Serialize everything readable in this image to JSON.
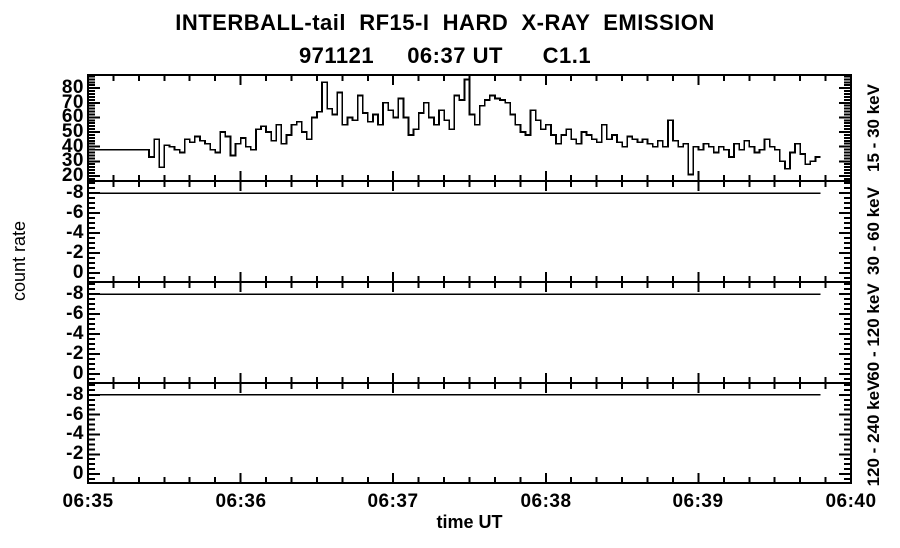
{
  "header": {
    "title": "INTERBALL-tail  RF15-I  HARD  X-RAY  EMISSION",
    "subtitle": "971121     06:37 UT      C1.1"
  },
  "axes": {
    "ylabel": "count rate",
    "xlabel": "time UT"
  },
  "chart_data": {
    "type": "line",
    "style": "step-histogram",
    "title": "INTERBALL-tail RF15-I HARD X-RAY EMISSION",
    "subtitle": "971121 06:37 UT C1.1",
    "xlabel": "time UT",
    "ylabel": "count rate",
    "x_ticks": [
      "06:35",
      "06:36",
      "06:37",
      "06:38",
      "06:39",
      "06:40"
    ],
    "x_range_seconds": [
      0,
      300
    ],
    "x_minor_interval_seconds": 10,
    "x_major_interval_seconds": 60,
    "start_time": "06:35:00",
    "bin_seconds": 2,
    "n_bins": 144,
    "line_color": "#000000",
    "background_color": "#ffffff",
    "legend": "none",
    "grid": "off",
    "panels": [
      {
        "label": "15 - 30 keV",
        "ylim_bottom_top": [
          16.5,
          89
        ],
        "y_major_ticks": [
          80,
          70,
          60,
          50,
          40,
          30,
          20
        ],
        "y_minor_step": 2,
        "values": [
          38,
          38,
          38,
          38,
          38,
          38,
          38,
          38,
          38,
          38,
          38,
          38,
          33,
          45,
          26,
          41,
          40,
          38,
          36,
          45,
          43,
          47,
          44,
          42,
          38,
          36,
          50,
          47,
          34,
          42,
          46,
          40,
          38,
          52,
          54,
          50,
          44,
          55,
          42,
          48,
          55,
          57,
          50,
          45,
          60,
          64,
          84,
          66,
          62,
          77,
          55,
          60,
          58,
          75,
          63,
          57,
          62,
          55,
          70,
          65,
          60,
          73,
          60,
          48,
          52,
          63,
          70,
          60,
          55,
          65,
          58,
          52,
          75,
          72,
          86,
          62,
          55,
          68,
          72,
          75,
          73,
          72,
          70,
          62,
          55,
          50,
          48,
          65,
          58,
          52,
          55,
          48,
          42,
          48,
          52,
          45,
          42,
          50,
          48,
          45,
          43,
          55,
          45,
          48,
          43,
          40,
          47,
          45,
          43,
          45,
          42,
          40,
          44,
          40,
          58,
          44,
          40,
          42,
          21,
          40,
          38,
          42,
          40,
          36,
          40,
          38,
          33,
          42,
          38,
          44,
          40,
          36,
          38,
          45,
          40,
          38,
          30,
          25,
          36,
          42,
          35,
          28,
          30,
          33
        ]
      },
      {
        "label": "30 - 60 keV",
        "ylim_bottom_top": [
          0.9,
          -9.2
        ],
        "y_major_ticks": [
          -8,
          -6,
          -4,
          -2,
          0
        ],
        "y_minor_step": 0.5,
        "flat_value": -8
      },
      {
        "label": "60 - 120 keV",
        "ylim_bottom_top": [
          0.9,
          -9.2
        ],
        "y_major_ticks": [
          -8,
          -6,
          -4,
          -2,
          0
        ],
        "y_minor_step": 0.5,
        "flat_value": -8
      },
      {
        "label": "120 - 240 keV",
        "ylim_bottom_top": [
          0.9,
          -9.2
        ],
        "y_major_ticks": [
          -8,
          -6,
          -4,
          -2,
          0
        ],
        "y_minor_step": 0.5,
        "flat_value": -8
      }
    ]
  }
}
